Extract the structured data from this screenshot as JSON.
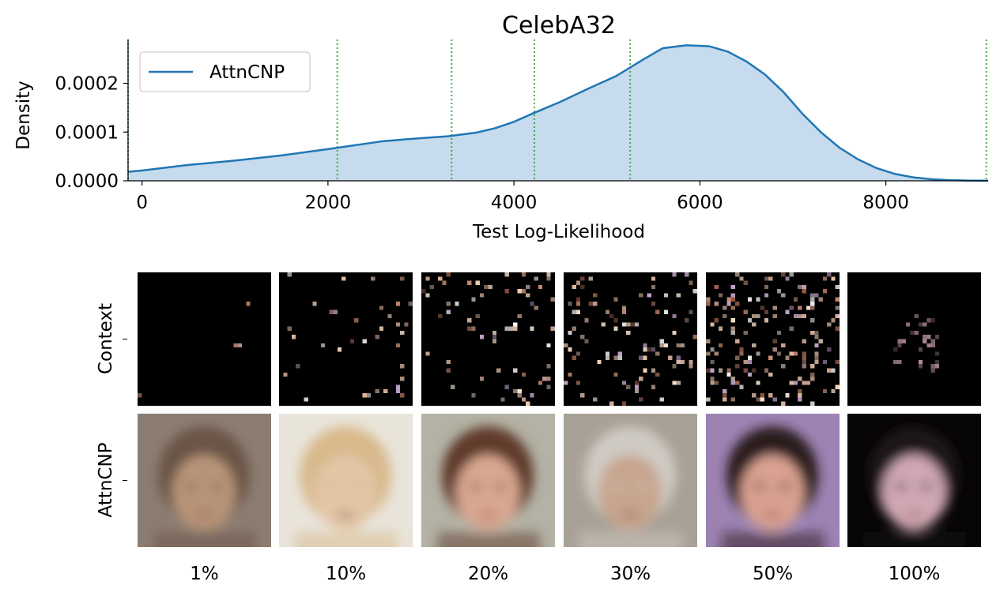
{
  "chart_data": {
    "type": "area",
    "title": "CelebA32",
    "xlabel": "Test Log-Likelihood",
    "ylabel": "Density",
    "xlim": [
      -150,
      9100
    ],
    "ylim": [
      0,
      0.00029
    ],
    "xticks": [
      0,
      2000,
      4000,
      6000,
      8000
    ],
    "xtick_labels": [
      "0",
      "2000",
      "4000",
      "6000",
      "8000"
    ],
    "yticks": [
      0,
      0.0001,
      0.0002
    ],
    "ytick_labels": [
      "0.0000",
      "0.0001",
      "0.0002"
    ],
    "legend": {
      "position": "top-left",
      "entries": [
        "AttnCNP"
      ]
    },
    "series": [
      {
        "name": "AttnCNP",
        "color": "#1f77b4",
        "fill": "#c6dbed",
        "x": [
          -150,
          0,
          500,
          1000,
          1500,
          2000,
          2600,
          3000,
          3300,
          3600,
          3800,
          4000,
          4200,
          4500,
          4800,
          5100,
          5400,
          5600,
          5850,
          6100,
          6300,
          6500,
          6700,
          6900,
          7100,
          7300,
          7500,
          7700,
          7900,
          8100,
          8300,
          8500,
          8700,
          8900,
          9100
        ],
        "y": [
          1.85e-05,
          2.1e-05,
          3.25e-05,
          4.15e-05,
          5.2e-05,
          6.5e-05,
          8.15e-05,
          8.75e-05,
          9.15e-05,
          9.9e-05,
          0.000108,
          0.000121,
          0.000138,
          0.000162,
          0.000189,
          0.000215,
          0.00025,
          0.000272,
          0.000278,
          0.000276,
          0.000265,
          0.000245,
          0.000218,
          0.000182,
          0.000138,
          0.0001,
          6.8e-05,
          4.4e-05,
          2.6e-05,
          1.4e-05,
          7e-06,
          3e-06,
          1.2e-06,
          4e-07,
          1e-07
        ]
      }
    ],
    "vertical_lines": [
      {
        "x": -150,
        "color": "#2ca02c",
        "style": "dotted"
      },
      {
        "x": 2100,
        "color": "#2ca02c",
        "style": "dotted"
      },
      {
        "x": 3330,
        "color": "#2ca02c",
        "style": "dotted"
      },
      {
        "x": 4220,
        "color": "#2ca02c",
        "style": "dotted"
      },
      {
        "x": 5250,
        "color": "#2ca02c",
        "style": "dotted"
      },
      {
        "x": 9080,
        "color": "#2ca02c",
        "style": "dotted"
      }
    ]
  },
  "image_grid": {
    "row_labels": [
      "Context",
      "AttnCNP"
    ],
    "column_labels": [
      "1%",
      "10%",
      "20%",
      "30%",
      "50%",
      "100%"
    ],
    "context_fractions": [
      0.01,
      0.1,
      0.2,
      0.3,
      0.5,
      1.0
    ],
    "context_background": "#000000",
    "predictions": [
      {
        "bg": "#8c7d72",
        "hair": "#6b5446",
        "skin": "#b79478"
      },
      {
        "bg": "#e9e4da",
        "hair": "#d8b98c",
        "skin": "#e2c6a6"
      },
      {
        "bg": "#b4b2a5",
        "hair": "#5e3a29",
        "skin": "#d9a791"
      },
      {
        "bg": "#a8a196",
        "hair": "#cfcac3",
        "skin": "#c7a58e"
      },
      {
        "bg": "#9c83b4",
        "hair": "#2a1a1c",
        "skin": "#d9a191"
      },
      {
        "bg": "#070506",
        "hair": "#1b1416",
        "skin": "#cfa7b3"
      }
    ]
  }
}
